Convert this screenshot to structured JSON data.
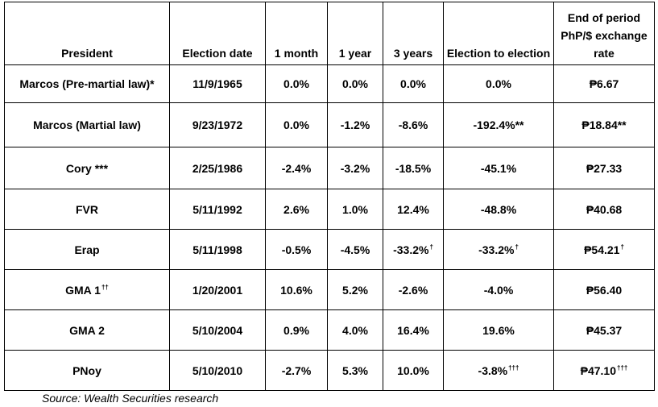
{
  "table": {
    "headers": {
      "president": "President",
      "election_date": "Election date",
      "one_month": "1 month",
      "one_year": "1 year",
      "three_years": "3 years",
      "election_to_election": "Election to election",
      "end_rate": "End of period PhP/$ exchange rate"
    },
    "rows": [
      {
        "president": "Marcos (Pre-martial law)*",
        "date": "11/9/1965",
        "m1": "0.0%",
        "y1": "0.0%",
        "y3": "0.0%",
        "y3_mark": "",
        "e2e": "0.0%",
        "e2e_mark": "",
        "rate": "₱6.67",
        "rate_mark": ""
      },
      {
        "president": "Marcos (Martial law)",
        "date": "9/23/1972",
        "m1": "0.0%",
        "y1": "-1.2%",
        "y3": "-8.6%",
        "y3_mark": "",
        "e2e": "-192.4%**",
        "e2e_mark": "",
        "rate": "₱18.84**",
        "rate_mark": ""
      },
      {
        "president": "Cory ***",
        "date": "2/25/1986",
        "m1": "-2.4%",
        "y1": "-3.2%",
        "y3": "-18.5%",
        "y3_mark": "",
        "e2e": "-45.1%",
        "e2e_mark": "",
        "rate": "₱27.33",
        "rate_mark": ""
      },
      {
        "president": "FVR",
        "date": "5/11/1992",
        "m1": "2.6%",
        "y1": "1.0%",
        "y3": "12.4%",
        "y3_mark": "",
        "e2e": "-48.8%",
        "e2e_mark": "",
        "rate": "₱40.68",
        "rate_mark": ""
      },
      {
        "president": "Erap",
        "date": "5/11/1998",
        "m1": "-0.5%",
        "y1": "-4.5%",
        "y3": "-33.2%",
        "y3_mark": "†",
        "e2e": "-33.2%",
        "e2e_mark": "†",
        "rate": "₱54.21",
        "rate_mark": "†"
      },
      {
        "president": "GMA 1",
        "president_mark": "††",
        "date": "1/20/2001",
        "m1": "10.6%",
        "y1": "5.2%",
        "y3": "-2.6%",
        "y3_mark": "",
        "e2e": "-4.0%",
        "e2e_mark": "",
        "rate": "₱56.40",
        "rate_mark": ""
      },
      {
        "president": "GMA 2",
        "date": "5/10/2004",
        "m1": "0.9%",
        "y1": "4.0%",
        "y3": "16.4%",
        "y3_mark": "",
        "e2e": "19.6%",
        "e2e_mark": "",
        "rate": "₱45.37",
        "rate_mark": ""
      },
      {
        "president": "PNoy",
        "date": "5/10/2010",
        "m1": "-2.7%",
        "y1": "5.3%",
        "y3": "10.0%",
        "y3_mark": "",
        "e2e": "-3.8%",
        "e2e_mark": "†††",
        "rate": "₱47.10",
        "rate_mark": "†††"
      }
    ]
  },
  "source": "Source: Wealth Securities research"
}
